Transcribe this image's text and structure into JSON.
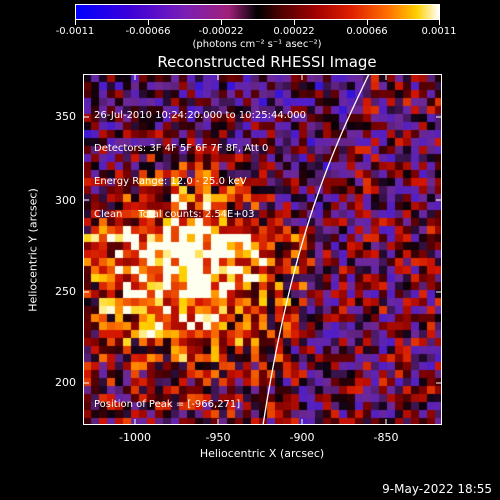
{
  "colorbar": {
    "tick_labels": [
      "-0.0011",
      "-0.00066",
      "-0.00022",
      "0.00022",
      "0.00066",
      "0.0011"
    ],
    "units": "(photons cm⁻² s⁻¹ asec⁻²)"
  },
  "image": {
    "title": "Reconstructed RHESSI Image",
    "info_lines": [
      "26-Jul-2010 10:24:20.000 to 10:25:44.000",
      "Detectors: 3F 4F 5F 6F 7F 8F, Att 0",
      "Energy Range: 12.0 - 25.0 keV",
      "Clean     Total counts: 2.54E+03"
    ],
    "peak_position": "Position of Peak = [-966,271]"
  },
  "axes": {
    "xlabel": "Heliocentric X (arcsec)",
    "ylabel": "Heliocentric Y (arcsec)",
    "x_ticks": [
      "-1000",
      "-950",
      "-900",
      "-850"
    ],
    "y_ticks": [
      "350",
      "300",
      "250",
      "200"
    ]
  },
  "timestamp": "9-May-2022 18:55"
}
